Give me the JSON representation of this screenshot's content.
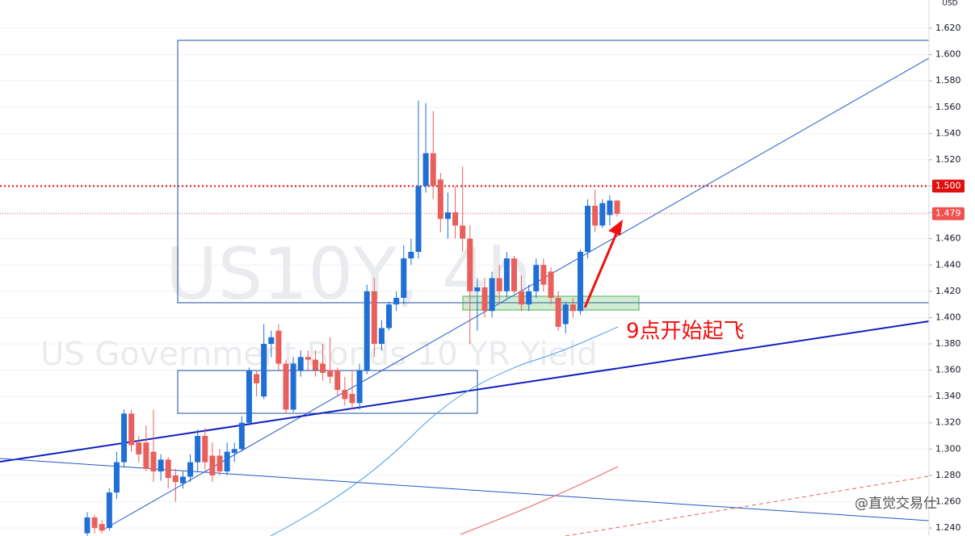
{
  "chart_data": {
    "type": "candlestick",
    "title": "US10Y, 4h",
    "subtitle": "US Government Bonds 10 YR Yield",
    "currency": "USD",
    "annotation": "9点开始起飞",
    "watermark": "@直觉交易仕",
    "up_color": "#1f6fd6",
    "down_color": "#e8605c",
    "grid": true,
    "ylim": [
      1.2339,
      1.6415
    ],
    "yticks": [
      {
        "value": 1.62,
        "label": "1.620"
      },
      {
        "value": 1.6,
        "label": "1.600"
      },
      {
        "value": 1.58,
        "label": "1.580"
      },
      {
        "value": 1.56,
        "label": "1.560"
      },
      {
        "value": 1.54,
        "label": "1.540"
      },
      {
        "value": 1.52,
        "label": "1.520"
      },
      {
        "value": 1.5,
        "label": "1.500"
      },
      {
        "value": 1.48,
        "label": "1.480"
      },
      {
        "value": 1.46,
        "label": "1.460"
      },
      {
        "value": 1.44,
        "label": "1.440"
      },
      {
        "value": 1.42,
        "label": "1.420"
      },
      {
        "value": 1.4,
        "label": "1.400"
      },
      {
        "value": 1.38,
        "label": "1.380"
      },
      {
        "value": 1.36,
        "label": "1.360"
      },
      {
        "value": 1.34,
        "label": "1.340"
      },
      {
        "value": 1.32,
        "label": "1.320"
      },
      {
        "value": 1.3,
        "label": "1.300"
      },
      {
        "value": 1.28,
        "label": "1.280"
      },
      {
        "value": 1.26,
        "label": "1.260"
      },
      {
        "value": 1.24,
        "label": "1.240"
      }
    ],
    "price_lines": [
      {
        "value": 1.5,
        "label": "1.500",
        "color": "#e01010"
      },
      {
        "value": 1.479,
        "label": "1.479",
        "color": "#ef5350"
      }
    ],
    "open": [
      1.236,
      1.248,
      1.243,
      1.24,
      1.267,
      1.29,
      1.327,
      1.305,
      1.305,
      1.298,
      1.283,
      1.292,
      1.28,
      1.274,
      1.279,
      1.29,
      1.31,
      1.295,
      1.295,
      1.283,
      1.297,
      1.3,
      1.32,
      1.357,
      1.34,
      1.38,
      1.39,
      1.365,
      1.33,
      1.36,
      1.37,
      1.368,
      1.365,
      1.36,
      1.36,
      1.345,
      1.342,
      1.335,
      1.36,
      1.42,
      1.38,
      1.392,
      1.41,
      1.415,
      1.445,
      1.45,
      1.5,
      1.525,
      1.505,
      1.475,
      1.48,
      1.47,
      1.46,
      1.42,
      1.423,
      1.405,
      1.43,
      1.42,
      1.445,
      1.42,
      1.41,
      1.42,
      1.44,
      1.435,
      1.415,
      1.395,
      1.41,
      1.405,
      1.45,
      1.485,
      1.47,
      1.478,
      1.489
    ],
    "high": [
      1.252,
      1.25,
      1.246,
      1.27,
      1.298,
      1.33,
      1.33,
      1.31,
      1.318,
      1.33,
      1.296,
      1.294,
      1.285,
      1.283,
      1.296,
      1.315,
      1.316,
      1.305,
      1.3,
      1.305,
      1.305,
      1.325,
      1.362,
      1.36,
      1.395,
      1.39,
      1.395,
      1.368,
      1.37,
      1.375,
      1.375,
      1.375,
      1.38,
      1.385,
      1.362,
      1.355,
      1.36,
      1.365,
      1.425,
      1.43,
      1.398,
      1.412,
      1.42,
      1.455,
      1.46,
      1.565,
      1.563,
      1.557,
      1.51,
      1.495,
      1.5,
      1.515,
      1.47,
      1.43,
      1.43,
      1.435,
      1.44,
      1.45,
      1.447,
      1.432,
      1.425,
      1.445,
      1.445,
      1.438,
      1.42,
      1.412,
      1.415,
      1.452,
      1.49,
      1.497,
      1.49,
      1.493,
      1.489
    ],
    "low": [
      1.234,
      1.236,
      1.236,
      1.238,
      1.262,
      1.286,
      1.298,
      1.29,
      1.283,
      1.275,
      1.276,
      1.27,
      1.26,
      1.27,
      1.275,
      1.283,
      1.284,
      1.275,
      1.28,
      1.28,
      1.29,
      1.298,
      1.318,
      1.34,
      1.338,
      1.37,
      1.36,
      1.327,
      1.328,
      1.355,
      1.36,
      1.355,
      1.352,
      1.35,
      1.34,
      1.333,
      1.33,
      1.33,
      1.357,
      1.37,
      1.375,
      1.39,
      1.405,
      1.41,
      1.44,
      1.445,
      1.495,
      1.49,
      1.465,
      1.46,
      1.46,
      1.45,
      1.38,
      1.39,
      1.4,
      1.4,
      1.41,
      1.415,
      1.418,
      1.405,
      1.405,
      1.415,
      1.42,
      1.41,
      1.39,
      1.388,
      1.4,
      1.402,
      1.445,
      1.465,
      1.468,
      1.47,
      1.477
    ],
    "close": [
      1.248,
      1.24,
      1.238,
      1.267,
      1.29,
      1.327,
      1.303,
      1.296,
      1.285,
      1.283,
      1.292,
      1.278,
      1.275,
      1.279,
      1.29,
      1.31,
      1.29,
      1.28,
      1.283,
      1.298,
      1.3,
      1.32,
      1.36,
      1.35,
      1.38,
      1.385,
      1.365,
      1.33,
      1.365,
      1.37,
      1.368,
      1.36,
      1.358,
      1.355,
      1.345,
      1.338,
      1.335,
      1.36,
      1.42,
      1.38,
      1.392,
      1.41,
      1.415,
      1.445,
      1.45,
      1.5,
      1.525,
      1.5,
      1.475,
      1.48,
      1.47,
      1.46,
      1.42,
      1.423,
      1.405,
      1.43,
      1.42,
      1.445,
      1.42,
      1.41,
      1.42,
      1.44,
      1.425,
      1.415,
      1.393,
      1.41,
      1.405,
      1.45,
      1.485,
      1.47,
      1.487,
      1.489,
      1.479
    ]
  }
}
